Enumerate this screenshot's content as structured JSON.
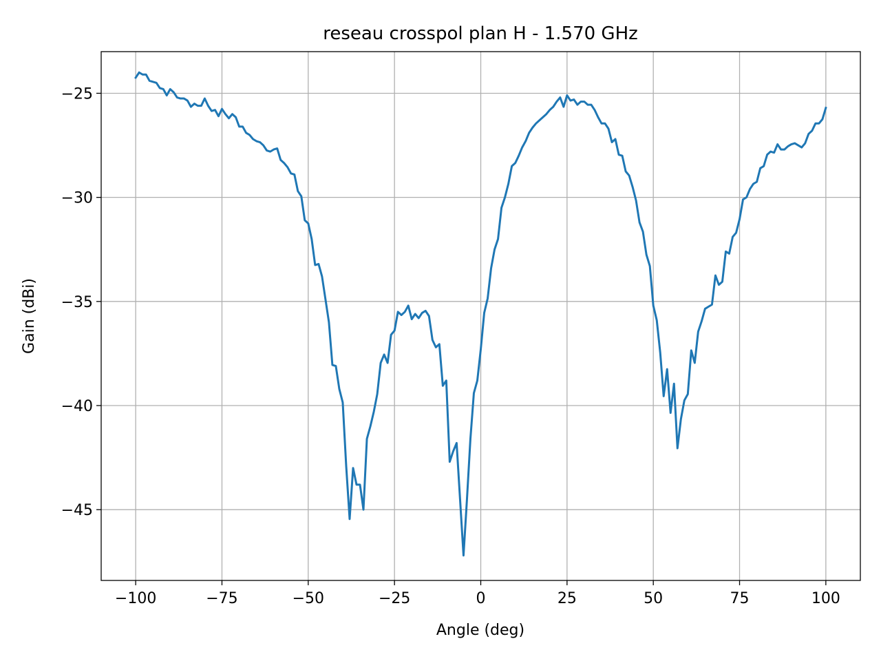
{
  "chart_data": {
    "type": "line",
    "title": "reseau crosspol plan H - 1.570 GHz",
    "xlabel": "Angle (deg)",
    "ylabel": "Gain (dBi)",
    "xlim": [
      -110,
      110
    ],
    "ylim": [
      -48.4,
      -23.0
    ],
    "xticks": [
      -100,
      -75,
      -50,
      -25,
      0,
      25,
      50,
      75,
      100
    ],
    "xtick_labels": [
      "−100",
      "−75",
      "−50",
      "−25",
      "0",
      "25",
      "50",
      "75",
      "100"
    ],
    "yticks": [
      -25,
      -30,
      -35,
      -40,
      -45
    ],
    "ytick_labels": [
      "−25",
      "−30",
      "−35",
      "−40",
      "−45"
    ],
    "grid": true,
    "colors": {
      "line": "#1f77b4",
      "grid": "#b0b0b0",
      "axes": "#000000"
    },
    "series": [
      {
        "x": [
          -100,
          -99,
          -98,
          -97,
          -96,
          -95,
          -94,
          -93,
          -92,
          -91,
          -90,
          -89,
          -88,
          -87,
          -86,
          -85,
          -84,
          -83,
          -82,
          -81,
          -80,
          -79,
          -78,
          -77,
          -76,
          -75,
          -74,
          -73,
          -72,
          -71,
          -70,
          -69,
          -68,
          -67,
          -66,
          -65,
          -64,
          -63,
          -62,
          -61,
          -60,
          -59,
          -58,
          -57,
          -56,
          -55,
          -54,
          -53,
          -52,
          -51,
          -50,
          -49,
          -48,
          -47,
          -46,
          -45,
          -44,
          -43,
          -42,
          -41,
          -40,
          -39,
          -38,
          -37,
          -36,
          -35,
          -34,
          -33,
          -32,
          -31,
          -30,
          -29,
          -28,
          -27,
          -26,
          -25,
          -24,
          -23,
          -22,
          -21,
          -20,
          -19,
          -18,
          -17,
          -16,
          -15,
          -14,
          -13,
          -12,
          -11,
          -10,
          -9,
          -8,
          -7,
          -6,
          -5,
          -4,
          -3,
          -2,
          -1,
          0,
          1,
          2,
          3,
          4,
          5,
          6,
          7,
          8,
          9,
          10,
          11,
          12,
          13,
          14,
          15,
          16,
          17,
          18,
          19,
          20,
          21,
          22,
          23,
          24,
          25,
          26,
          27,
          28,
          29,
          30,
          31,
          32,
          33,
          34,
          35,
          36,
          37,
          38,
          39,
          40,
          41,
          42,
          43,
          44,
          45,
          46,
          47,
          48,
          49,
          50,
          51,
          52,
          53,
          54,
          55,
          56,
          57,
          58,
          59,
          60,
          61,
          62,
          63,
          64,
          65,
          66,
          67,
          68,
          69,
          70,
          71,
          72,
          73,
          74,
          75,
          76,
          77,
          78,
          79,
          80,
          81,
          82,
          83,
          84,
          85,
          86,
          87,
          88,
          89,
          90,
          91,
          92,
          93,
          94,
          95,
          96,
          97,
          98,
          99,
          100
        ],
        "y": [
          -24.25,
          -24.0,
          -24.1,
          -24.1,
          -24.4,
          -24.45,
          -24.5,
          -24.75,
          -24.8,
          -25.1,
          -24.8,
          -24.95,
          -25.2,
          -25.25,
          -25.25,
          -25.35,
          -25.65,
          -25.5,
          -25.6,
          -25.6,
          -25.25,
          -25.6,
          -25.85,
          -25.8,
          -26.1,
          -25.75,
          -26.0,
          -26.2,
          -26.0,
          -26.15,
          -26.6,
          -26.6,
          -26.9,
          -27.0,
          -27.2,
          -27.3,
          -27.35,
          -27.5,
          -27.75,
          -27.8,
          -27.7,
          -27.65,
          -28.2,
          -28.35,
          -28.55,
          -28.85,
          -28.9,
          -29.7,
          -29.95,
          -31.1,
          -31.25,
          -32.0,
          -33.25,
          -33.2,
          -33.8,
          -34.9,
          -36.0,
          -38.05,
          -38.1,
          -39.2,
          -39.85,
          -42.9,
          -45.45,
          -43.0,
          -43.8,
          -43.8,
          -45.0,
          -41.6,
          -41.0,
          -40.3,
          -39.45,
          -37.95,
          -37.55,
          -37.95,
          -36.6,
          -36.4,
          -35.5,
          -35.65,
          -35.5,
          -35.2,
          -35.85,
          -35.6,
          -35.8,
          -35.55,
          -35.45,
          -35.7,
          -36.85,
          -37.2,
          -37.05,
          -39.05,
          -38.8,
          -42.7,
          -42.2,
          -41.8,
          -44.5,
          -47.2,
          -44.5,
          -41.6,
          -39.4,
          -38.8,
          -37.3,
          -35.55,
          -34.85,
          -33.4,
          -32.5,
          -32.0,
          -30.5,
          -30.0,
          -29.35,
          -28.5,
          -28.35,
          -28.0,
          -27.6,
          -27.3,
          -26.9,
          -26.65,
          -26.45,
          -26.3,
          -26.15,
          -26.0,
          -25.8,
          -25.65,
          -25.4,
          -25.2,
          -25.65,
          -25.1,
          -25.35,
          -25.3,
          -25.55,
          -25.4,
          -25.4,
          -25.55,
          -25.55,
          -25.8,
          -26.15,
          -26.45,
          -26.45,
          -26.7,
          -27.35,
          -27.2,
          -27.95,
          -28.0,
          -28.75,
          -28.95,
          -29.5,
          -30.15,
          -31.2,
          -31.65,
          -32.75,
          -33.3,
          -35.2,
          -35.9,
          -37.45,
          -39.55,
          -38.25,
          -40.35,
          -38.95,
          -42.05,
          -40.65,
          -39.75,
          -39.45,
          -37.35,
          -37.95,
          -36.45,
          -35.95,
          -35.35,
          -35.25,
          -35.15,
          -33.75,
          -34.2,
          -34.05,
          -32.6,
          -32.7,
          -31.9,
          -31.7,
          -31.05,
          -30.1,
          -30.0,
          -29.6,
          -29.35,
          -29.25,
          -28.6,
          -28.5,
          -27.95,
          -27.8,
          -27.85,
          -27.45,
          -27.7,
          -27.7,
          -27.55,
          -27.45,
          -27.4,
          -27.5,
          -27.6,
          -27.4,
          -26.95,
          -26.8,
          -26.45,
          -26.45,
          -26.25,
          -25.7
        ]
      }
    ]
  }
}
